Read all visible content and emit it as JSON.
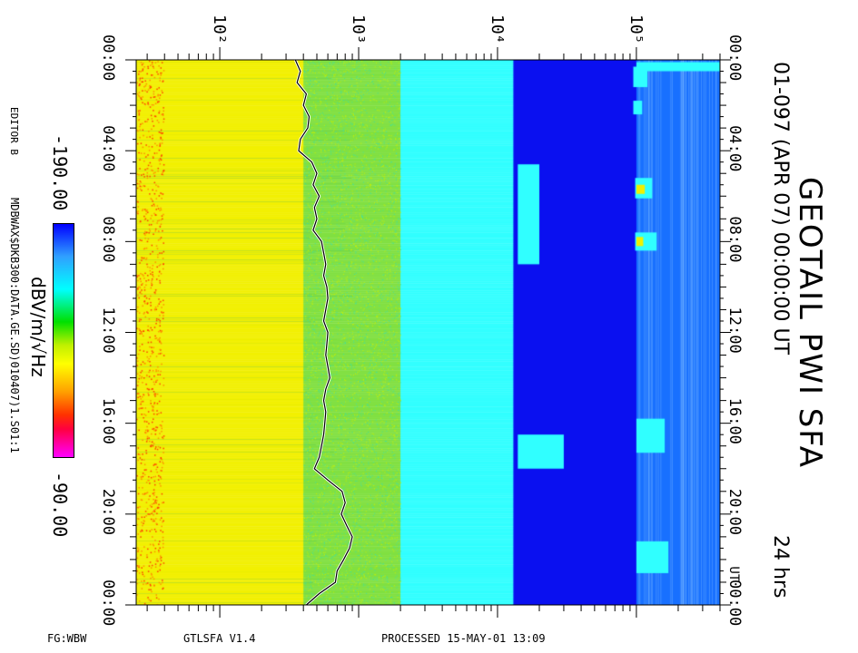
{
  "title": {
    "instrument": "GEOTAIL PWI SFA",
    "date_line": "01-097 (APR 07) 00:00:00 UT",
    "duration": "24 hrs"
  },
  "colorbar": {
    "min_label": "-190.00",
    "max_label": "-90.00",
    "unit": "dBV/m/√Hz"
  },
  "side_text": {
    "editor": "EDITOR B",
    "file": "MDBWAX$DKB300:DATA.GE.SD)010407)1.S01:1"
  },
  "footer": {
    "left": "FG:WBW",
    "program": "GTLSFA   V1.4",
    "processed": "PROCESSED 15-MAY-01   13:09"
  },
  "chart_data": {
    "type": "heatmap",
    "title": "GEOTAIL PWI SFA",
    "x_axis": {
      "quantity": "frequency",
      "scale": "log",
      "range": [
        25,
        400000
      ],
      "tick_labels": [
        "10²",
        "10³",
        "10⁴",
        "10⁵"
      ],
      "tick_values": [
        100,
        1000,
        10000,
        100000
      ]
    },
    "y_axis": {
      "quantity": "time (UT)",
      "range_hours": [
        0,
        24
      ],
      "tick_labels_left": [
        "00:00",
        "04:00",
        "08:00",
        "12:00",
        "16:00",
        "20:00",
        "00:00"
      ],
      "tick_labels_right": [
        "00:00",
        "04:00",
        "08:00",
        "12:00",
        "16:00",
        "20:00",
        "00:00"
      ],
      "right_extra_label": "UT",
      "tick_hours": [
        0,
        4,
        8,
        12,
        16,
        20,
        24
      ]
    },
    "color_scale": {
      "range": [
        -190,
        -90
      ],
      "unit": "dBV/m/√Hz",
      "colors": [
        "#ff00ff",
        "#ff0000",
        "#ffa000",
        "#ffff00",
        "#00e000",
        "#00ffff",
        "#30a0ff",
        "#0000ff"
      ]
    },
    "bands": [
      {
        "f_low": 25,
        "f_high": 400,
        "level": -110,
        "color": "#f2f000"
      },
      {
        "f_low": 400,
        "f_high": 2000,
        "level": -135,
        "color": "#80e040"
      },
      {
        "f_low": 2000,
        "f_high": 13000,
        "level": -155,
        "color": "#30ffff"
      },
      {
        "f_low": 13000,
        "f_high": 100000,
        "level": -185,
        "color": "#0a10f0"
      },
      {
        "f_low": 100000,
        "f_high": 400000,
        "level": -170,
        "color": "#1870ff"
      }
    ],
    "trace": {
      "name": "plasma frequency",
      "hours": [
        0,
        0.5,
        1,
        1.5,
        2,
        2.5,
        3,
        3.5,
        4,
        4.5,
        5,
        5.5,
        6,
        6.5,
        7,
        7.5,
        8,
        8.5,
        9,
        9.5,
        10,
        10.5,
        11,
        11.5,
        12,
        12.5,
        13,
        13.5,
        14,
        14.5,
        15,
        15.5,
        16,
        16.5,
        17,
        17.5,
        18,
        18.5,
        19,
        19.5,
        20,
        20.5,
        21,
        21.5,
        22,
        22.5,
        23,
        23.5,
        24
      ],
      "freq_hz": [
        350,
        380,
        360,
        420,
        400,
        440,
        430,
        380,
        370,
        460,
        500,
        470,
        520,
        480,
        500,
        470,
        540,
        560,
        580,
        560,
        590,
        600,
        580,
        560,
        600,
        590,
        580,
        600,
        620,
        580,
        560,
        580,
        570,
        560,
        540,
        520,
        480,
        600,
        760,
        800,
        750,
        820,
        900,
        860,
        780,
        700,
        680,
        520,
        420
      ]
    }
  }
}
